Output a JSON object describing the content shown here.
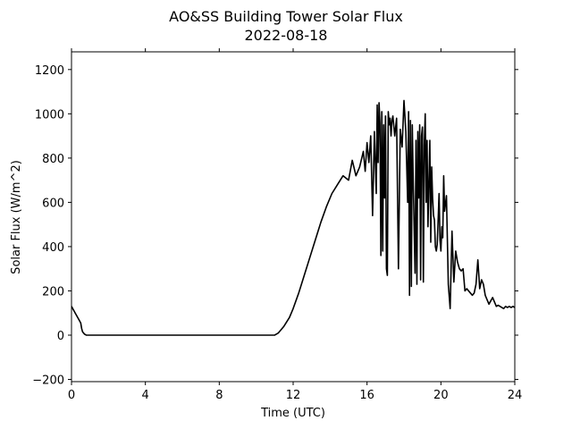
{
  "chart_data": {
    "type": "line",
    "title": "AO&SS Building Tower Solar Flux",
    "subtitle": "2022-08-18",
    "xlabel": "Time (UTC)",
    "ylabel": "Solar Flux (W/m^2)",
    "xlim": [
      0,
      24
    ],
    "ylim": [
      -210,
      1280
    ],
    "xticks": [
      0,
      4,
      8,
      12,
      16,
      20,
      24
    ],
    "yticks": [
      -200,
      0,
      200,
      400,
      600,
      800,
      1000,
      1200
    ],
    "line_color": "#000000",
    "grid": false,
    "series": [
      {
        "x": [
          0,
          0.2,
          0.4,
          0.5,
          0.55,
          0.6,
          0.7,
          0.8,
          1.0,
          2,
          4,
          6,
          8,
          10,
          11.0,
          11.2,
          11.5,
          11.8,
          12.0,
          12.3,
          12.6,
          12.9,
          13.2,
          13.5,
          13.8,
          14.1,
          14.4,
          14.7,
          15.0,
          15.2,
          15.4,
          15.6,
          15.8,
          15.9,
          16.0,
          16.1,
          16.2,
          16.3,
          16.4,
          16.5,
          16.55,
          16.6,
          16.65,
          16.7,
          16.75,
          16.8,
          16.85,
          16.9,
          16.95,
          17.0,
          17.05,
          17.1,
          17.15,
          17.2,
          17.25,
          17.3,
          17.35,
          17.4,
          17.5,
          17.6,
          17.7,
          17.8,
          17.9,
          18.0,
          18.1,
          18.2,
          18.25,
          18.3,
          18.35,
          18.4,
          18.45,
          18.5,
          18.6,
          18.65,
          18.7,
          18.75,
          18.8,
          18.85,
          18.9,
          18.95,
          19.0,
          19.05,
          19.1,
          19.15,
          19.2,
          19.25,
          19.3,
          19.35,
          19.4,
          19.45,
          19.5,
          19.55,
          19.6,
          19.65,
          19.7,
          19.75,
          19.8,
          19.85,
          19.9,
          19.95,
          20.0,
          20.05,
          20.1,
          20.15,
          20.2,
          20.3,
          20.4,
          20.5,
          20.6,
          20.7,
          20.8,
          20.9,
          21.0,
          21.1,
          21.2,
          21.3,
          21.4,
          21.5,
          21.6,
          21.7,
          21.8,
          21.9,
          22.0,
          22.1,
          22.2,
          22.3,
          22.4,
          22.6,
          22.8,
          23.0,
          23.1,
          23.2,
          23.3,
          23.4,
          23.5,
          23.6,
          23.7,
          23.8,
          23.9,
          24.0
        ],
        "y": [
          130,
          100,
          70,
          55,
          30,
          15,
          5,
          0,
          0,
          0,
          0,
          0,
          0,
          0,
          0,
          10,
          40,
          80,
          120,
          190,
          270,
          350,
          430,
          510,
          580,
          640,
          680,
          720,
          700,
          790,
          720,
          760,
          830,
          740,
          870,
          780,
          900,
          540,
          920,
          640,
          1040,
          780,
          1050,
          960,
          360,
          1010,
          380,
          950,
          620,
          990,
          300,
          270,
          1010,
          950,
          980,
          900,
          970,
          990,
          900,
          980,
          300,
          930,
          850,
          1060,
          920,
          600,
          1010,
          180,
          970,
          220,
          950,
          700,
          280,
          880,
          230,
          920,
          620,
          950,
          250,
          900,
          940,
          240,
          860,
          1000,
          600,
          880,
          490,
          690,
          880,
          420,
          760,
          620,
          540,
          520,
          400,
          380,
          410,
          520,
          640,
          430,
          380,
          490,
          440,
          720,
          560,
          630,
          230,
          120,
          470,
          240,
          380,
          330,
          300,
          290,
          300,
          200,
          210,
          200,
          190,
          180,
          190,
          230,
          340,
          210,
          250,
          230,
          180,
          140,
          170,
          130,
          135,
          130,
          125,
          120,
          130,
          125,
          130,
          125,
          130,
          125
        ]
      }
    ]
  }
}
